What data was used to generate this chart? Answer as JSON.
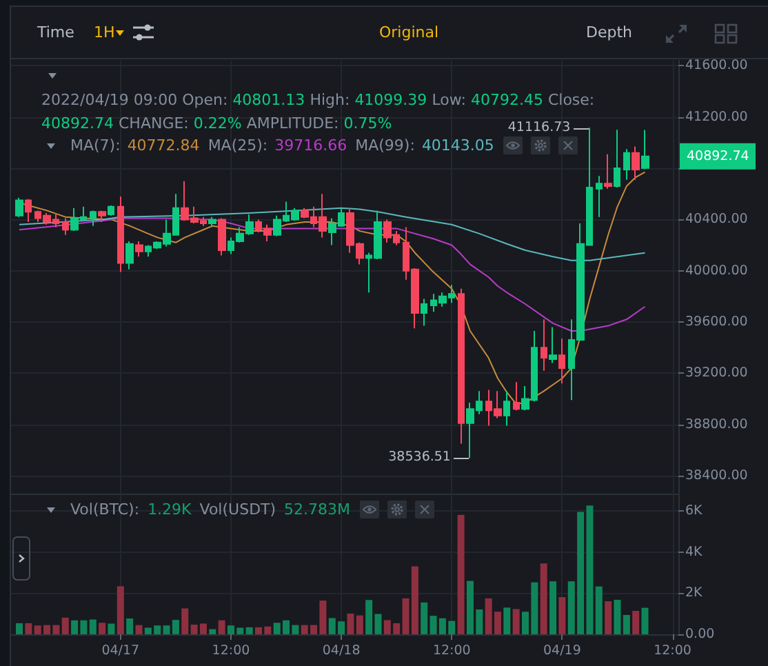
{
  "chart_data": [
    {
      "type": "other",
      "annotations": [
        "Time",
        "1H",
        "Original",
        "Depth"
      ]
    },
    {
      "type": "candlestick",
      "x": [
        "2022-04-16T13:00",
        "2022-04-16T14:00",
        "2022-04-16T15:00",
        "2022-04-16T16:00",
        "2022-04-16T17:00",
        "2022-04-16T18:00",
        "2022-04-16T19:00",
        "2022-04-16T20:00",
        "2022-04-16T21:00",
        "2022-04-16T22:00",
        "2022-04-16T23:00",
        "2022-04-17T00:00",
        "2022-04-17T01:00",
        "2022-04-17T02:00",
        "2022-04-17T03:00",
        "2022-04-17T04:00",
        "2022-04-17T05:00",
        "2022-04-17T06:00",
        "2022-04-17T07:00",
        "2022-04-17T08:00",
        "2022-04-17T09:00",
        "2022-04-17T10:00",
        "2022-04-17T11:00",
        "2022-04-17T12:00",
        "2022-04-17T13:00",
        "2022-04-17T14:00",
        "2022-04-17T15:00",
        "2022-04-17T16:00",
        "2022-04-17T17:00",
        "2022-04-17T18:00",
        "2022-04-17T19:00",
        "2022-04-17T20:00",
        "2022-04-17T21:00",
        "2022-04-17T22:00",
        "2022-04-17T23:00",
        "2022-04-18T00:00",
        "2022-04-18T01:00",
        "2022-04-18T02:00",
        "2022-04-18T03:00",
        "2022-04-18T04:00",
        "2022-04-18T05:00",
        "2022-04-18T06:00",
        "2022-04-18T07:00",
        "2022-04-18T08:00",
        "2022-04-18T09:00",
        "2022-04-18T10:00",
        "2022-04-18T11:00",
        "2022-04-18T12:00",
        "2022-04-18T13:00",
        "2022-04-18T14:00",
        "2022-04-18T15:00",
        "2022-04-18T16:00",
        "2022-04-18T17:00",
        "2022-04-18T18:00",
        "2022-04-18T19:00",
        "2022-04-18T20:00",
        "2022-04-18T21:00",
        "2022-04-18T22:00",
        "2022-04-18T23:00",
        "2022-04-19T00:00",
        "2022-04-19T01:00",
        "2022-04-19T02:00",
        "2022-04-19T03:00",
        "2022-04-19T04:00",
        "2022-04-19T05:00",
        "2022-04-19T06:00",
        "2022-04-19T07:00",
        "2022-04-19T08:00",
        "2022-04-19T09:00"
      ],
      "ohlc": [
        [
          40430,
          40570,
          40420,
          40550
        ],
        [
          40550,
          40560,
          40380,
          40460
        ],
        [
          40460,
          40470,
          40380,
          40410
        ],
        [
          40430,
          40450,
          40360,
          40380
        ],
        [
          40400,
          40450,
          40340,
          40370
        ],
        [
          40380,
          40410,
          40280,
          40320
        ],
        [
          40320,
          40490,
          40310,
          40410
        ],
        [
          40400,
          40500,
          40390,
          40420
        ],
        [
          40410,
          40470,
          40350,
          40460
        ],
        [
          40460,
          40470,
          40380,
          40430
        ],
        [
          40440,
          40510,
          40430,
          40500
        ],
        [
          40500,
          40580,
          39990,
          40060
        ],
        [
          40060,
          40230,
          40010,
          40210
        ],
        [
          40200,
          40230,
          40110,
          40150
        ],
        [
          40150,
          40200,
          40110,
          40190
        ],
        [
          40180,
          40230,
          40170,
          40220
        ],
        [
          40210,
          40400,
          40190,
          40290
        ],
        [
          40280,
          40600,
          40280,
          40490
        ],
        [
          40490,
          40700,
          40390,
          40400
        ],
        [
          40410,
          40500,
          40370,
          40380
        ],
        [
          40390,
          40420,
          40350,
          40370
        ],
        [
          40370,
          40420,
          40340,
          40400
        ],
        [
          40400,
          40410,
          40120,
          40160
        ],
        [
          40160,
          40260,
          40130,
          40230
        ],
        [
          40230,
          40340,
          40220,
          40290
        ],
        [
          40290,
          40440,
          40280,
          40380
        ],
        [
          40380,
          40400,
          40300,
          40320
        ],
        [
          40330,
          40360,
          40230,
          40280
        ],
        [
          40280,
          40430,
          40270,
          40400
        ],
        [
          40390,
          40540,
          40380,
          40430
        ],
        [
          40400,
          40490,
          40390,
          40470
        ],
        [
          40470,
          40490,
          40410,
          40420
        ],
        [
          40420,
          40500,
          40340,
          40370
        ],
        [
          40420,
          40600,
          40260,
          40310
        ],
        [
          40300,
          40410,
          40200,
          40370
        ],
        [
          40350,
          40490,
          40350,
          40450
        ],
        [
          40450,
          40490,
          40140,
          40200
        ],
        [
          40210,
          40220,
          40050,
          40100
        ],
        [
          40100,
          40140,
          39830,
          40120
        ],
        [
          40100,
          40470,
          40090,
          40380
        ],
        [
          40380,
          40400,
          40220,
          40260
        ],
        [
          40280,
          40310,
          40200,
          40220
        ],
        [
          40220,
          40340,
          39930,
          40000
        ],
        [
          40010,
          40020,
          39550,
          39670
        ],
        [
          39670,
          39780,
          39570,
          39740
        ],
        [
          39730,
          39820,
          39680,
          39770
        ],
        [
          39750,
          39830,
          39720,
          39800
        ],
        [
          39790,
          39890,
          39750,
          39820
        ],
        [
          39820,
          39860,
          38650,
          38810
        ],
        [
          38810,
          38970,
          38536.51,
          38920
        ],
        [
          38910,
          39060,
          38880,
          38980
        ],
        [
          38980,
          39070,
          38790,
          38910
        ],
        [
          38920,
          39060,
          38850,
          38870
        ],
        [
          38870,
          39060,
          38790,
          38980
        ],
        [
          38970,
          39130,
          38910,
          38920
        ],
        [
          38920,
          39100,
          38910,
          39000
        ],
        [
          38990,
          39530,
          38980,
          39400
        ],
        [
          39400,
          39620,
          39220,
          39320
        ],
        [
          39310,
          39560,
          39280,
          39340
        ],
        [
          39340,
          39470,
          39120,
          39240
        ],
        [
          39240,
          39620,
          38990,
          39460
        ],
        [
          39460,
          40370,
          39460,
          40210
        ],
        [
          40200,
          41116.73,
          40200,
          40650
        ],
        [
          40640,
          40740,
          40420,
          40680
        ],
        [
          40680,
          40910,
          40640,
          40660
        ],
        [
          40660,
          41100,
          40650,
          40800
        ],
        [
          40790,
          40950,
          40710,
          40920
        ],
        [
          40920,
          40970,
          40710,
          40790
        ],
        [
          40801.13,
          41099.39,
          40792.45,
          40892.74
        ]
      ],
      "colors": [
        "#0ecb81",
        "#f6465d",
        "#f6465d",
        "#f6465d",
        "#f6465d",
        "#f6465d",
        "#0ecb81",
        "#0ecb81",
        "#0ecb81",
        "#f6465d",
        "#0ecb81",
        "#f6465d",
        "#0ecb81",
        "#f6465d",
        "#0ecb81",
        "#0ecb81",
        "#0ecb81",
        "#0ecb81",
        "#f6465d",
        "#f6465d",
        "#f6465d",
        "#0ecb81",
        "#f6465d",
        "#0ecb81",
        "#0ecb81",
        "#0ecb81",
        "#f6465d",
        "#f6465d",
        "#0ecb81",
        "#0ecb81",
        "#0ecb81",
        "#f6465d",
        "#f6465d",
        "#f6465d",
        "#0ecb81",
        "#0ecb81",
        "#f6465d",
        "#f6465d",
        "#0ecb81",
        "#0ecb81",
        "#f6465d",
        "#f6465d",
        "#f6465d",
        "#f6465d",
        "#0ecb81",
        "#0ecb81",
        "#0ecb81",
        "#0ecb81",
        "#f6465d",
        "#0ecb81",
        "#0ecb81",
        "#f6465d",
        "#f6465d",
        "#0ecb81",
        "#f6465d",
        "#0ecb81",
        "#0ecb81",
        "#f6465d",
        "#0ecb81",
        "#f6465d",
        "#0ecb81",
        "#0ecb81",
        "#0ecb81",
        "#0ecb81",
        "#f6465d",
        "#0ecb81",
        "#0ecb81",
        "#f6465d",
        "#0ecb81"
      ],
      "series": [
        {
          "type": "line",
          "color": "#c98b3a",
          "x": [
            "2022-04-16T13:00",
            "2022-04-16T16:00",
            "2022-04-16T18:00",
            "2022-04-16T20:00",
            "2022-04-16T23:00",
            "2022-04-17T01:00",
            "2022-04-17T03:00",
            "2022-04-17T04:00",
            "2022-04-17T06:00",
            "2022-04-17T07:00",
            "2022-04-17T09:00",
            "2022-04-17T10:00",
            "2022-04-17T12:00",
            "2022-04-17T14:00",
            "2022-04-17T16:00",
            "2022-04-17T18:00",
            "2022-04-17T20:00",
            "2022-04-17T23:00",
            "2022-04-18T01:00",
            "2022-04-18T02:00",
            "2022-04-18T04:00",
            "2022-04-18T06:00",
            "2022-04-18T07:00",
            "2022-04-18T08:00",
            "2022-04-18T10:00",
            "2022-04-18T12:00",
            "2022-04-18T13:00",
            "2022-04-18T14:00",
            "2022-04-18T16:00",
            "2022-04-18T17:00",
            "2022-04-18T18:00",
            "2022-04-18T19:00",
            "2022-04-18T20:00",
            "2022-04-18T22:00",
            "2022-04-19T00:00",
            "2022-04-19T01:00",
            "2022-04-19T02:00",
            "2022-04-19T03:00",
            "2022-04-19T04:00",
            "2022-04-19T05:00",
            "2022-04-19T06:00",
            "2022-04-19T07:00",
            "2022-04-19T08:00",
            "2022-04-19T09:00"
          ],
          "values": [
            40530,
            40470,
            40420,
            40410,
            40400,
            40350,
            40290,
            40260,
            40220,
            40260,
            40320,
            40350,
            40330,
            40310,
            40310,
            40360,
            40380,
            40380,
            40350,
            40310,
            40280,
            40280,
            40230,
            40140,
            39990,
            39860,
            39730,
            39530,
            39320,
            39160,
            39050,
            38960,
            38970,
            39060,
            39160,
            39240,
            39490,
            39780,
            40030,
            40280,
            40500,
            40660,
            40730,
            40770
          ]
        },
        {
          "type": "line",
          "color": "#b93cc8",
          "x": [
            "2022-04-16T13:00",
            "2022-04-16T17:00",
            "2022-04-16T22:00",
            "2022-04-17T00:00",
            "2022-04-17T05:00",
            "2022-04-17T10:00",
            "2022-04-17T12:00",
            "2022-04-17T14:00",
            "2022-04-17T17:00",
            "2022-04-17T22:00",
            "2022-04-18T03:00",
            "2022-04-18T06:00",
            "2022-04-18T07:00",
            "2022-04-18T10:00",
            "2022-04-18T12:00",
            "2022-04-18T13:00",
            "2022-04-18T14:00",
            "2022-04-18T16:00",
            "2022-04-18T17:00",
            "2022-04-18T18:00",
            "2022-04-18T20:00",
            "2022-04-18T23:00",
            "2022-04-19T01:00",
            "2022-04-19T02:00",
            "2022-04-19T05:00",
            "2022-04-19T07:00",
            "2022-04-19T09:00"
          ],
          "values": [
            40320,
            40350,
            40390,
            40410,
            40410,
            40400,
            40370,
            40330,
            40330,
            40330,
            40330,
            40330,
            40310,
            40250,
            40200,
            40130,
            40050,
            39950,
            39880,
            39830,
            39740,
            39590,
            39530,
            39530,
            39570,
            39620,
            39720
          ]
        },
        {
          "type": "line",
          "color": "#5ab8bd",
          "x": [
            "2022-04-16T13:00",
            "2022-04-16T22:00",
            "2022-04-17T00:00",
            "2022-04-17T07:00",
            "2022-04-17T14:00",
            "2022-04-17T19:00",
            "2022-04-18T00:00",
            "2022-04-18T02:00",
            "2022-04-18T04:00",
            "2022-04-18T07:00",
            "2022-04-18T12:00",
            "2022-04-18T15:00",
            "2022-04-18T18:00",
            "2022-04-18T20:00",
            "2022-04-18T23:00",
            "2022-04-19T01:00",
            "2022-04-19T03:00",
            "2022-04-19T06:00",
            "2022-04-19T09:00"
          ],
          "values": [
            40360,
            40400,
            40420,
            40430,
            40450,
            40470,
            40490,
            40480,
            40460,
            40420,
            40360,
            40290,
            40210,
            40160,
            40110,
            40080,
            40080,
            40110,
            40140
          ]
        }
      ],
      "xlim": [
        "2022-04-16T12:06",
        "2022-04-19T12:38"
      ],
      "xticks": [
        "2022-04-17T00:00",
        "2022-04-17T12:00",
        "2022-04-18T00:00",
        "2022-04-18T12:00",
        "2022-04-19T00:00",
        "2022-04-19T12:00"
      ],
      "ylim": [
        38260,
        41640
      ],
      "yticks": [
        {
          "value": 38400,
          "label": "38400.00"
        },
        {
          "value": 38800,
          "label": "38800.00"
        },
        {
          "value": 39200,
          "label": "39200.00"
        },
        {
          "value": 39600,
          "label": "39600.00"
        },
        {
          "value": 40000,
          "label": "40000.00"
        },
        {
          "value": 40400,
          "label": "40400.00"
        },
        {
          "value": 40800,
          "label": null
        },
        {
          "value": 41200,
          "label": "41200.00"
        },
        {
          "value": 41600,
          "label": "41600.00"
        }
      ],
      "tick_labels": "y",
      "grid": true,
      "marker": "none",
      "annotations": [
        "2022/04/19 09:00 Open:",
        "40801.13",
        "High:",
        "41099.39",
        "Low:",
        "40792.45",
        "Close:",
        "40892.74",
        "CHANGE:",
        "0.22%",
        "AMPLITUDE:",
        "0.75%",
        "MA(7):",
        "40772.84",
        "MA(25):",
        "39716.66",
        "MA(99):",
        "40143.05",
        {
          "text": "41116.73",
          "x": "2022-04-19T03:00",
          "y": 41116.73
        },
        {
          "text": "38536.51",
          "x": "2022-04-18T14:00",
          "y": 38536.51
        }
      ]
    },
    {
      "type": "bar",
      "x": [
        "2022-04-16T13:00",
        "2022-04-16T14:00",
        "2022-04-16T15:00",
        "2022-04-16T16:00",
        "2022-04-16T17:00",
        "2022-04-16T18:00",
        "2022-04-16T19:00",
        "2022-04-16T20:00",
        "2022-04-16T21:00",
        "2022-04-16T22:00",
        "2022-04-16T23:00",
        "2022-04-17T00:00",
        "2022-04-17T01:00",
        "2022-04-17T02:00",
        "2022-04-17T03:00",
        "2022-04-17T04:00",
        "2022-04-17T05:00",
        "2022-04-17T06:00",
        "2022-04-17T07:00",
        "2022-04-17T08:00",
        "2022-04-17T09:00",
        "2022-04-17T10:00",
        "2022-04-17T11:00",
        "2022-04-17T12:00",
        "2022-04-17T13:00",
        "2022-04-17T14:00",
        "2022-04-17T15:00",
        "2022-04-17T16:00",
        "2022-04-17T17:00",
        "2022-04-17T18:00",
        "2022-04-17T19:00",
        "2022-04-17T20:00",
        "2022-04-17T21:00",
        "2022-04-17T22:00",
        "2022-04-17T23:00",
        "2022-04-18T00:00",
        "2022-04-18T01:00",
        "2022-04-18T02:00",
        "2022-04-18T03:00",
        "2022-04-18T04:00",
        "2022-04-18T05:00",
        "2022-04-18T06:00",
        "2022-04-18T07:00",
        "2022-04-18T08:00",
        "2022-04-18T09:00",
        "2022-04-18T10:00",
        "2022-04-18T11:00",
        "2022-04-18T12:00",
        "2022-04-18T13:00",
        "2022-04-18T14:00",
        "2022-04-18T15:00",
        "2022-04-18T16:00",
        "2022-04-18T17:00",
        "2022-04-18T18:00",
        "2022-04-18T19:00",
        "2022-04-18T20:00",
        "2022-04-18T21:00",
        "2022-04-18T22:00",
        "2022-04-18T23:00",
        "2022-04-19T00:00",
        "2022-04-19T01:00",
        "2022-04-19T02:00",
        "2022-04-19T03:00",
        "2022-04-19T04:00",
        "2022-04-19T05:00",
        "2022-04-19T06:00",
        "2022-04-19T07:00",
        "2022-04-19T08:00",
        "2022-04-19T09:00"
      ],
      "values": [
        540,
        540,
        430,
        450,
        450,
        810,
        680,
        680,
        720,
        560,
        520,
        2340,
        770,
        450,
        320,
        430,
        430,
        700,
        1260,
        470,
        520,
        250,
        680,
        430,
        320,
        340,
        340,
        380,
        560,
        680,
        450,
        450,
        450,
        1640,
        790,
        630,
        1010,
        920,
        1670,
        990,
        690,
        540,
        1750,
        3310,
        1550,
        900,
        780,
        650,
        5820,
        2600,
        1210,
        1750,
        1100,
        1300,
        1230,
        1100,
        2530,
        3450,
        2580,
        1810,
        2580,
        5960,
        6270,
        2330,
        1610,
        1680,
        940,
        1140,
        1290
      ],
      "colors": [
        "#11855a",
        "#8f3040",
        "#8f3040",
        "#8f3040",
        "#8f3040",
        "#8f3040",
        "#11855a",
        "#11855a",
        "#11855a",
        "#8f3040",
        "#11855a",
        "#8f3040",
        "#11855a",
        "#8f3040",
        "#11855a",
        "#11855a",
        "#11855a",
        "#11855a",
        "#8f3040",
        "#8f3040",
        "#8f3040",
        "#11855a",
        "#8f3040",
        "#11855a",
        "#11855a",
        "#11855a",
        "#8f3040",
        "#8f3040",
        "#11855a",
        "#11855a",
        "#11855a",
        "#8f3040",
        "#8f3040",
        "#8f3040",
        "#11855a",
        "#11855a",
        "#8f3040",
        "#8f3040",
        "#11855a",
        "#11855a",
        "#8f3040",
        "#8f3040",
        "#8f3040",
        "#8f3040",
        "#11855a",
        "#11855a",
        "#11855a",
        "#11855a",
        "#8f3040",
        "#11855a",
        "#11855a",
        "#8f3040",
        "#8f3040",
        "#11855a",
        "#8f3040",
        "#11855a",
        "#11855a",
        "#8f3040",
        "#11855a",
        "#8f3040",
        "#11855a",
        "#11855a",
        "#11855a",
        "#11855a",
        "#8f3040",
        "#11855a",
        "#11855a",
        "#8f3040",
        "#11855a"
      ],
      "xlim": [
        "2022-04-16T12:06",
        "2022-04-19T12:38"
      ],
      "xticks": [
        {
          "value": "2022-04-17T00:00",
          "label": "04/17"
        },
        {
          "value": "2022-04-17T12:00",
          "label": "12:00"
        },
        {
          "value": "2022-04-18T00:00",
          "label": "04/18"
        },
        {
          "value": "2022-04-18T12:00",
          "label": "12:00"
        },
        {
          "value": "2022-04-19T00:00",
          "label": "04/19"
        },
        {
          "value": "2022-04-19T12:00",
          "label": "12:00"
        }
      ],
      "ylim": [
        0,
        6850
      ],
      "yticks": [
        {
          "value": 0,
          "label": "0.00"
        },
        {
          "value": 2000,
          "label": "2K"
        },
        {
          "value": 4000,
          "label": "4K"
        },
        {
          "value": 6000,
          "label": "6K"
        }
      ],
      "grid": true,
      "annotations": [
        "Vol(BTC):",
        "1.29K",
        "Vol(USDT)",
        "52.783M"
      ]
    }
  ]
}
